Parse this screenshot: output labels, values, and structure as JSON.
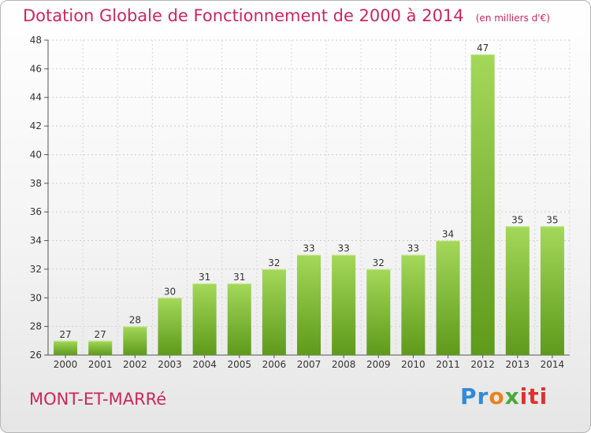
{
  "title": "Dotation Globale de Fonctionnement de 2000 à 2014",
  "unit_note": "(en milliers d'€)",
  "commune": "MONT-ET-MARRé",
  "logo": {
    "part1": "Pr",
    "part2": "o",
    "part3": "x",
    "part4": "iti"
  },
  "colors": {
    "bar_light": "#9fd354",
    "bar_dark": "#5f9a1c",
    "title": "#c8285c",
    "grid": "#d0d0d0"
  },
  "chart_data": {
    "type": "bar",
    "title": "Dotation Globale de Fonctionnement de 2000 à 2014",
    "subtitle": "(en milliers d'€)",
    "categories": [
      "2000",
      "2001",
      "2002",
      "2003",
      "2004",
      "2005",
      "2006",
      "2007",
      "2008",
      "2009",
      "2010",
      "2011",
      "2012",
      "2013",
      "2014"
    ],
    "values": [
      27,
      27,
      28,
      30,
      31,
      31,
      32,
      33,
      33,
      32,
      33,
      34,
      47,
      35,
      35
    ],
    "ylim": [
      26,
      48
    ],
    "yticks": [
      26,
      28,
      30,
      32,
      34,
      36,
      38,
      40,
      42,
      44,
      46,
      48
    ],
    "grid": true,
    "xlabel": "",
    "ylabel": ""
  }
}
